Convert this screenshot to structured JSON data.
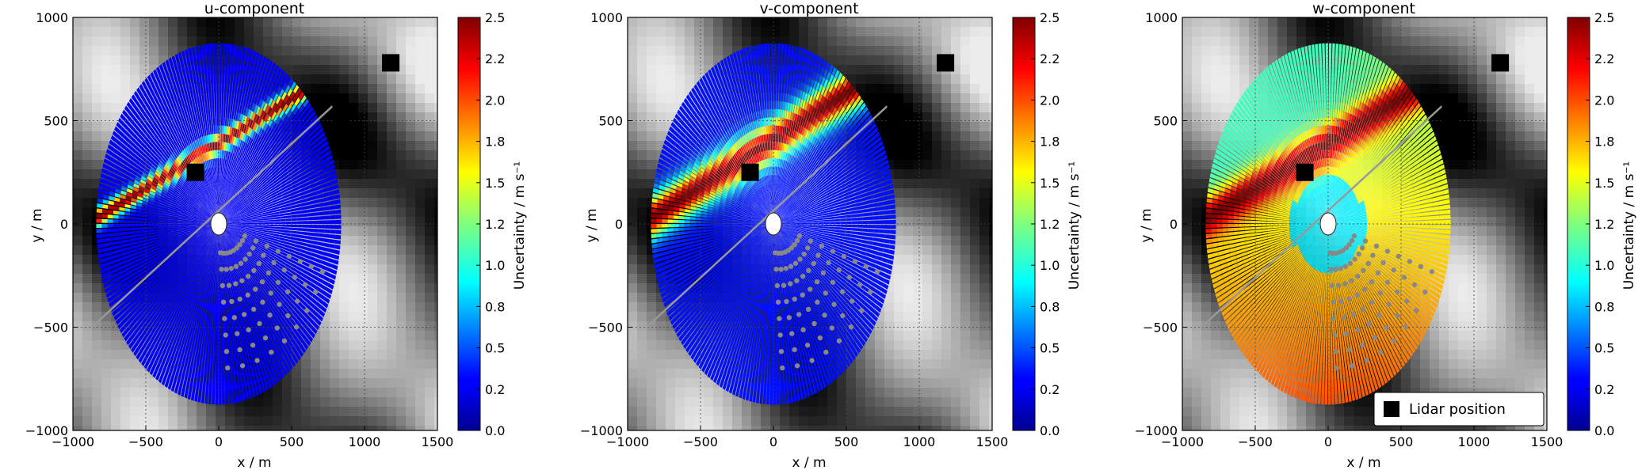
{
  "chart_data": [
    {
      "type": "heatmap",
      "title": "u-component",
      "xlabel": "x / m",
      "ylabel": "y / m",
      "xlim": [
        -1000,
        1500
      ],
      "ylim": [
        -1000,
        1000
      ],
      "xticks": [
        -1000,
        -500,
        0,
        500,
        1000,
        1500
      ],
      "yticks": [
        -1000,
        -500,
        0,
        500,
        1000
      ],
      "xtick_labels": [
        "−1000",
        "−500",
        "0",
        "500",
        "1000",
        "1500"
      ],
      "ytick_labels": [
        "−1000",
        "−500",
        "0",
        "500",
        "1000"
      ],
      "grid": true,
      "background": "grayscale terrain",
      "colormap": "jet",
      "colorbar": {
        "label": "Uncertainty / m s⁻¹",
        "range": [
          0.0,
          2.5
        ],
        "ticks": [
          "0.0",
          "0.2",
          "0.5",
          "0.8",
          "1.0",
          "1.2",
          "1.5",
          "1.8",
          "2.0",
          "2.2",
          "2.5"
        ],
        "tick_values": [
          0.0,
          0.25,
          0.5,
          0.75,
          1.0,
          1.25,
          1.5,
          1.75,
          2.0,
          2.25,
          2.5
        ]
      },
      "scan_disk": {
        "center": [
          0,
          0
        ],
        "radius_x": 840,
        "radius_y": 875,
        "base_uncertainty": 0.3,
        "band_from": [
          -900,
          0
        ],
        "band_to": [
          600,
          650
        ],
        "band_peak": 2.5,
        "band_half_width": 40
      },
      "lidars": [
        {
          "x": 0,
          "y": 0
        },
        {
          "x": -160,
          "y": 250
        },
        {
          "x": 840,
          "y": 540
        },
        {
          "x": 1180,
          "y": 780
        }
      ],
      "line_of_sight": {
        "from": [
          -870,
          -500
        ],
        "to": [
          780,
          570
        ]
      },
      "grey_points_fan": {
        "origin": [
          0,
          0
        ],
        "angle_range_deg": [
          -85,
          -18
        ],
        "rays": 9,
        "points_per_ray": 8
      }
    },
    {
      "type": "heatmap",
      "title": "v-component",
      "xlabel": "x / m",
      "ylabel": "y / m",
      "xlim": [
        -1000,
        1500
      ],
      "ylim": [
        -1000,
        1000
      ],
      "xticks": [
        -1000,
        -500,
        0,
        500,
        1000,
        1500
      ],
      "yticks": [
        -1000,
        -500,
        0,
        500,
        1000
      ],
      "xtick_labels": [
        "−1000",
        "−500",
        "0",
        "500",
        "1000",
        "1500"
      ],
      "ytick_labels": [
        "−1000",
        "−500",
        "0",
        "500",
        "1000"
      ],
      "grid": true,
      "background": "grayscale terrain",
      "colormap": "jet",
      "colorbar": {
        "label": "Uncertainty / m s⁻¹",
        "range": [
          0.0,
          2.5
        ],
        "ticks": [
          "0.0",
          "0.2",
          "0.5",
          "0.8",
          "1.0",
          "1.2",
          "1.5",
          "1.8",
          "2.0",
          "2.2",
          "2.5"
        ],
        "tick_values": [
          0.0,
          0.25,
          0.5,
          0.75,
          1.0,
          1.25,
          1.5,
          1.75,
          2.0,
          2.25,
          2.5
        ]
      },
      "scan_disk": {
        "center": [
          0,
          0
        ],
        "radius_x": 840,
        "radius_y": 875,
        "base_uncertainty": 0.35,
        "band_from": [
          -900,
          0
        ],
        "band_to": [
          650,
          700
        ],
        "band_peak": 2.5,
        "band_half_width": 90
      },
      "lidars": [
        {
          "x": 0,
          "y": 0
        },
        {
          "x": -160,
          "y": 250
        },
        {
          "x": 840,
          "y": 540
        },
        {
          "x": 1180,
          "y": 780
        }
      ],
      "line_of_sight": {
        "from": [
          -870,
          -500
        ],
        "to": [
          780,
          570
        ]
      },
      "grey_points_fan": {
        "origin": [
          0,
          0
        ],
        "angle_range_deg": [
          -85,
          -18
        ],
        "rays": 9,
        "points_per_ray": 8
      }
    },
    {
      "type": "heatmap",
      "title": "w-component",
      "xlabel": "x / m",
      "ylabel": "y / m",
      "xlim": [
        -1000,
        1500
      ],
      "ylim": [
        -1000,
        1000
      ],
      "xticks": [
        -1000,
        -500,
        0,
        500,
        1000,
        1500
      ],
      "yticks": [
        -1000,
        -500,
        0,
        500,
        1000
      ],
      "xtick_labels": [
        "−1000",
        "−500",
        "0",
        "500",
        "1000",
        "1500"
      ],
      "ytick_labels": [
        "−1000",
        "−500",
        "0",
        "500",
        "1000"
      ],
      "grid": true,
      "background": "grayscale terrain",
      "colormap": "jet",
      "colorbar": {
        "label": "Uncertainty / m s⁻¹",
        "range": [
          0.0,
          2.5
        ],
        "ticks": [
          "0.0",
          "0.2",
          "0.5",
          "0.8",
          "1.0",
          "1.2",
          "1.5",
          "1.8",
          "2.0",
          "2.2",
          "2.5"
        ],
        "tick_values": [
          0.0,
          0.25,
          0.5,
          0.75,
          1.0,
          1.25,
          1.5,
          1.75,
          2.0,
          2.25,
          2.5
        ]
      },
      "scan_disk": {
        "center": [
          0,
          0
        ],
        "radius_x": 840,
        "radius_y": 875,
        "base_uncertainty": 1.6,
        "upper_half_uncertainty": 1.1,
        "band_from": [
          -900,
          0
        ],
        "band_to": [
          600,
          650
        ],
        "band_peak": 2.5,
        "band_half_width": 90
      },
      "lidars": [
        {
          "x": 0,
          "y": 0
        },
        {
          "x": -160,
          "y": 250
        },
        {
          "x": 840,
          "y": 540
        },
        {
          "x": 1180,
          "y": 780
        }
      ],
      "line_of_sight": {
        "from": [
          -870,
          -500
        ],
        "to": [
          780,
          570
        ]
      },
      "grey_points_fan": {
        "origin": [
          0,
          0
        ],
        "angle_range_deg": [
          -85,
          -18
        ],
        "rays": 9,
        "points_per_ray": 8
      },
      "legend": {
        "label": "Lidar position",
        "placement": "lower-right"
      }
    }
  ]
}
